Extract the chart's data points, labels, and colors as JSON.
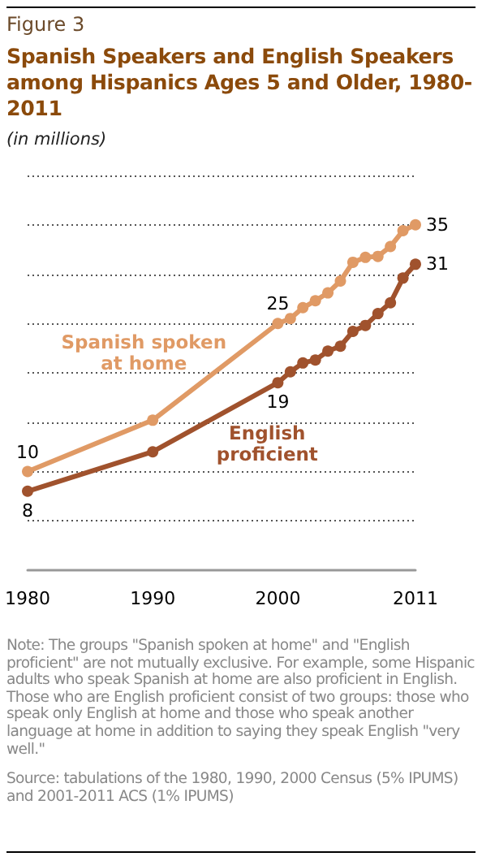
{
  "chart_data": {
    "type": "line",
    "title": "Spanish Speakers and English Speakers among Hispanics Ages 5 and Older, 1980-2011",
    "subtitle": "(in millions)",
    "annotations": [
      "Figure 3",
      "Note: The groups \"Spanish spoken at home\" and \"English proficient\" are not mutually exclusive. For example, some Hispanic adults who speak Spanish at home are also proficient in English. Those who are English proficient consist of two groups: those who speak only English at home and those who speak another language at home in addition to saying they speak English \"very well.\"",
      "Source: tabulations of the 1980, 1990, 2000 Census (5% IPUMS) and 2001-2011 ACS (1% IPUMS)"
    ],
    "x": [
      1980,
      1990,
      2000,
      2001,
      2002,
      2003,
      2004,
      2005,
      2006,
      2007,
      2008,
      2009,
      2010,
      2011
    ],
    "series": [
      {
        "name": "Spanish spoken at home",
        "color": "#e09a65",
        "values": [
          10,
          15.2,
          25,
          25.5,
          26.6,
          27.3,
          28.1,
          29.3,
          31.2,
          31.7,
          31.8,
          32.8,
          34.4,
          35
        ],
        "value_labels": [
          "10",
          null,
          "25",
          null,
          null,
          null,
          null,
          null,
          null,
          null,
          null,
          null,
          null,
          "35"
        ]
      },
      {
        "name": "English proficient",
        "color": "#a0522d",
        "values": [
          8,
          12.0,
          19,
          20.1,
          21.0,
          21.3,
          22.2,
          22.7,
          24.2,
          24.8,
          26.0,
          27.1,
          29.6,
          31
        ],
        "value_labels": [
          "8",
          null,
          "19",
          null,
          null,
          null,
          null,
          null,
          null,
          null,
          null,
          null,
          null,
          "31"
        ]
      }
    ],
    "xlim": [
      1980,
      2011
    ],
    "xticks": [
      1980,
      1990,
      2000,
      2011
    ],
    "ylim": [
      0,
      40
    ],
    "yticks": [
      {
        "value": 5,
        "label": null
      },
      {
        "value": 10,
        "label": null
      },
      {
        "value": 15,
        "label": null
      },
      {
        "value": 20,
        "label": null
      },
      {
        "value": 25,
        "label": null
      },
      {
        "value": 30,
        "label": null
      },
      {
        "value": 35,
        "label": null
      },
      {
        "value": 40,
        "label": null
      }
    ],
    "tick_labels": "x",
    "grid": "y",
    "marker": "circle",
    "line_style": "solid",
    "legend": false
  }
}
